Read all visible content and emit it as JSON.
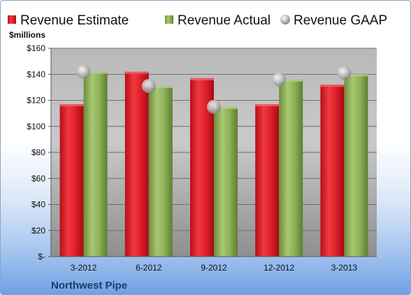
{
  "chart_data": {
    "type": "bar",
    "categories": [
      "3-2012",
      "6-2012",
      "9-2012",
      "12-2012",
      "3-2013"
    ],
    "series": [
      {
        "name": "Revenue Estimate",
        "values": [
          117,
          142,
          137,
          117,
          132
        ],
        "color": "#e0202a"
      },
      {
        "name": "Revenue Actual",
        "values": [
          142,
          131,
          115,
          136,
          140
        ],
        "color": "#8db25a"
      },
      {
        "name": "Revenue GAAP",
        "values": [
          142,
          131,
          115,
          136,
          141
        ],
        "color": "#c0c0c0",
        "marker": "sphere"
      }
    ],
    "ylabel": "$millions",
    "ylim": [
      0,
      160
    ],
    "yticks": [
      0,
      20,
      40,
      60,
      80,
      100,
      120,
      140,
      160
    ],
    "ytick_labels": [
      "$-",
      "$20",
      "$40",
      "$60",
      "$80",
      "$100",
      "$120",
      "$140",
      "$160"
    ],
    "grid": true,
    "legend_position": "top",
    "company": "Northwest Pipe"
  }
}
